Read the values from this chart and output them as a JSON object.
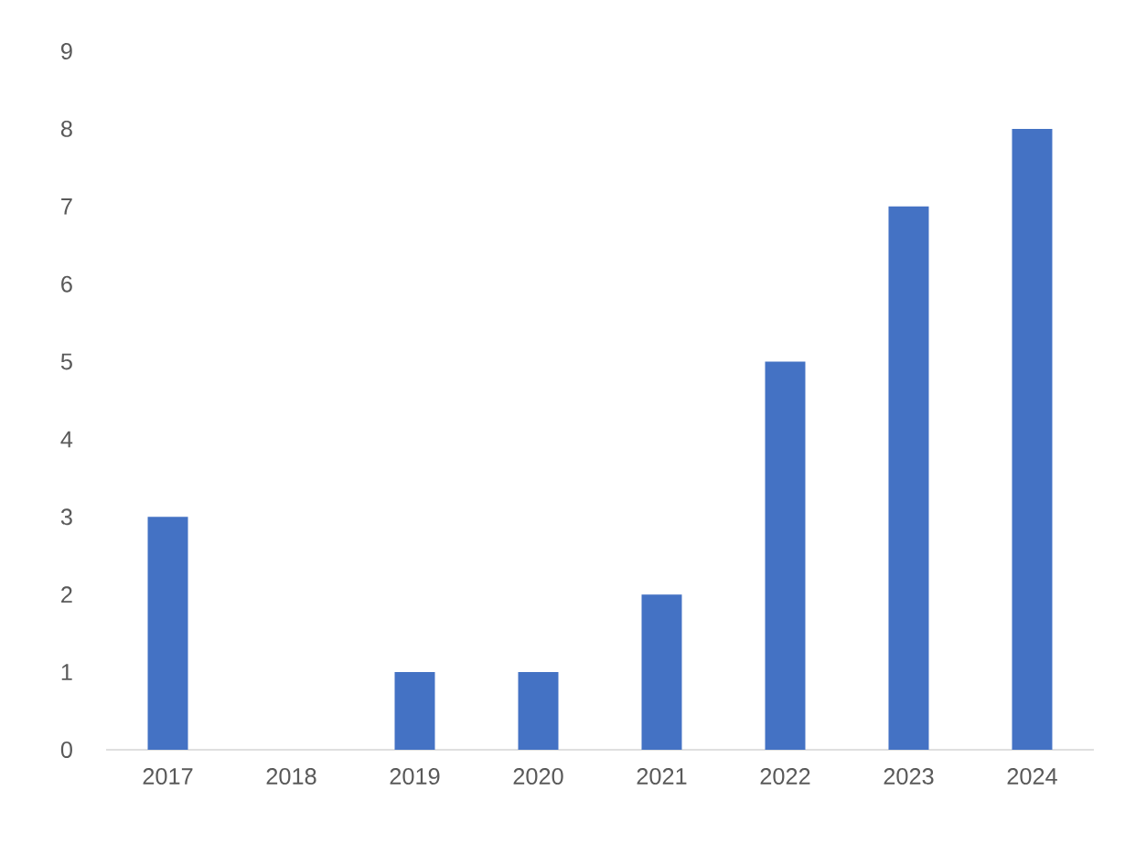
{
  "chart_data": {
    "type": "bar",
    "categories": [
      "2017",
      "2018",
      "2019",
      "2020",
      "2021",
      "2022",
      "2023",
      "2024"
    ],
    "values": [
      3,
      0,
      1,
      1,
      2,
      5,
      7,
      8
    ],
    "color": "#4472c4",
    "ylim": [
      0,
      9
    ],
    "yticks": [
      0,
      1,
      2,
      3,
      4,
      5,
      6,
      7,
      8,
      9
    ]
  }
}
